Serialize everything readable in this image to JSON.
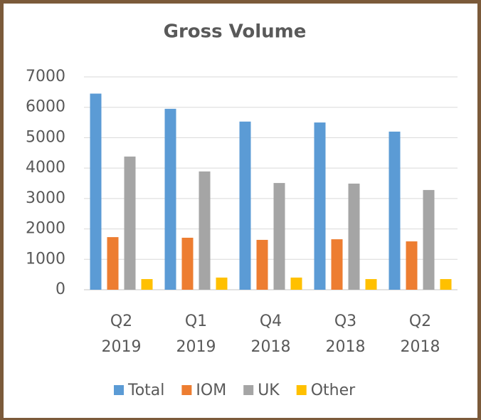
{
  "chart_data": {
    "type": "bar",
    "title": "Gross Volume",
    "categories": [
      "Q2 2019",
      "Q1 2019",
      "Q4 2018",
      "Q3 2018",
      "Q2 2018"
    ],
    "series": [
      {
        "name": "Total",
        "color": "#5b9bd5",
        "values": [
          6450,
          5950,
          5530,
          5500,
          5200
        ]
      },
      {
        "name": "IOM",
        "color": "#ed7d31",
        "values": [
          1730,
          1710,
          1640,
          1660,
          1590
        ]
      },
      {
        "name": "UK",
        "color": "#a5a5a5",
        "values": [
          4380,
          3890,
          3510,
          3490,
          3280
        ]
      },
      {
        "name": "Other",
        "color": "#ffc000",
        "values": [
          350,
          400,
          400,
          350,
          350
        ]
      }
    ],
    "ylim": [
      0,
      7000
    ],
    "yticks": [
      0,
      1000,
      2000,
      3000,
      4000,
      5000,
      6000,
      7000
    ],
    "grid": true,
    "legend": "bottom"
  }
}
